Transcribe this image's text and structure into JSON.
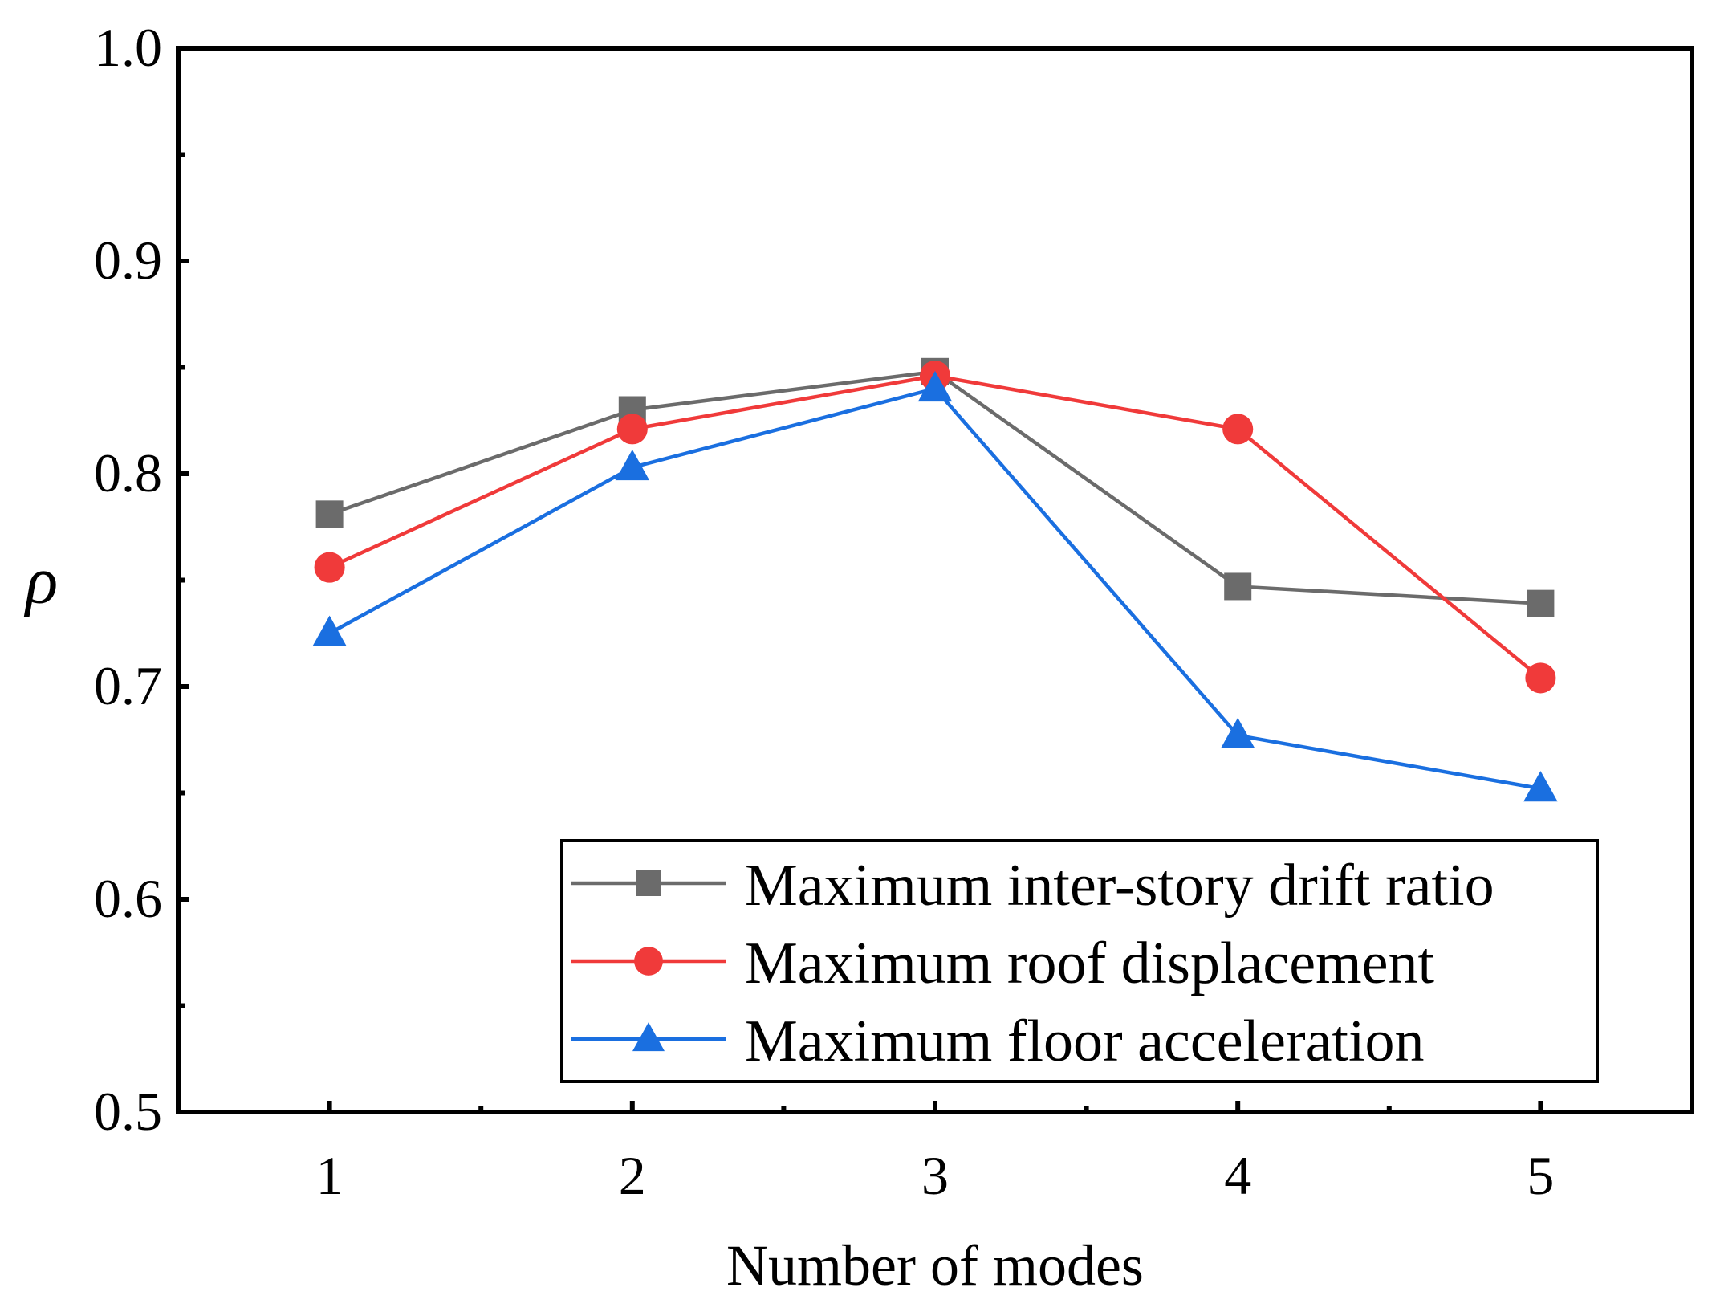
{
  "chart_data": {
    "type": "line",
    "title": "",
    "xlabel": "Number of modes",
    "ylabel": "ρ",
    "x": [
      1,
      2,
      3,
      4,
      5
    ],
    "x_tick_labels": [
      "1",
      "2",
      "3",
      "4",
      "5"
    ],
    "xlim": [
      0.5,
      5.5
    ],
    "ylim": [
      0.5,
      1.0
    ],
    "y_ticks": [
      0.5,
      0.6,
      0.7,
      0.8,
      0.9,
      1.0
    ],
    "y_tick_labels": [
      "0.5",
      "0.6",
      "0.7",
      "0.8",
      "0.9",
      "1.0"
    ],
    "grid": false,
    "legend_position": "bottom-right",
    "series": [
      {
        "name": "Maximum inter-story drift ratio",
        "color": "#6b6b6b",
        "marker": "square",
        "values": [
          0.781,
          0.83,
          0.848,
          0.747,
          0.739
        ]
      },
      {
        "name": "Maximum roof displacement",
        "color": "#f03a3a",
        "marker": "circle",
        "values": [
          0.756,
          0.821,
          0.846,
          0.821,
          0.704
        ]
      },
      {
        "name": "Maximum floor acceleration",
        "color": "#1a6fe0",
        "marker": "triangle",
        "values": [
          0.725,
          0.803,
          0.84,
          0.677,
          0.652
        ]
      }
    ]
  }
}
